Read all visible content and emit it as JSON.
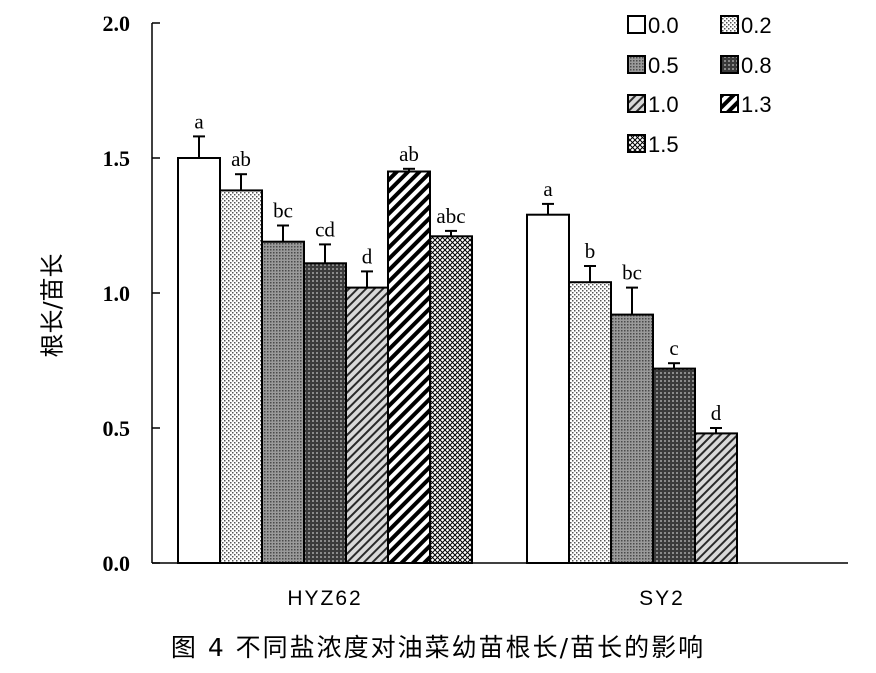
{
  "caption": "图 4   不同盐浓度对油菜幼苗根长/苗长的影响",
  "chart_data": {
    "type": "bar",
    "title": "",
    "xlabel": "",
    "ylabel": "根长/苗长",
    "ylim": [
      0,
      2.0
    ],
    "yticks": [
      "0.0",
      "0.5",
      "1.0",
      "1.5",
      "2.0"
    ],
    "categories": [
      "HYZ62",
      "SY2"
    ],
    "legend_position": "top-right",
    "series": [
      {
        "name": "0.0",
        "pattern": "white",
        "values": [
          1.5,
          1.29
        ],
        "errors": [
          0.08,
          0.04
        ],
        "letters": [
          "a",
          "a"
        ]
      },
      {
        "name": "0.2",
        "pattern": "fine-dots",
        "values": [
          1.38,
          1.04
        ],
        "errors": [
          0.06,
          0.06
        ],
        "letters": [
          "ab",
          "b"
        ]
      },
      {
        "name": "0.5",
        "pattern": "gray-dots",
        "values": [
          1.19,
          0.92
        ],
        "errors": [
          0.06,
          0.1
        ],
        "letters": [
          "bc",
          "bc"
        ]
      },
      {
        "name": "0.8",
        "pattern": "dark-grid",
        "values": [
          1.11,
          0.72
        ],
        "errors": [
          0.07,
          0.02
        ],
        "letters": [
          "cd",
          "c"
        ]
      },
      {
        "name": "1.0",
        "pattern": "gray-diag",
        "values": [
          1.02,
          0.48
        ],
        "errors": [
          0.06,
          0.02
        ],
        "letters": [
          "d",
          "d"
        ]
      },
      {
        "name": "1.3",
        "pattern": "black-diag",
        "values": [
          1.45,
          null
        ],
        "errors": [
          0.01,
          null
        ],
        "letters": [
          "ab",
          ""
        ]
      },
      {
        "name": "1.5",
        "pattern": "crosshatch",
        "values": [
          1.21,
          null
        ],
        "errors": [
          0.02,
          null
        ],
        "letters": [
          "abc",
          ""
        ]
      }
    ]
  }
}
